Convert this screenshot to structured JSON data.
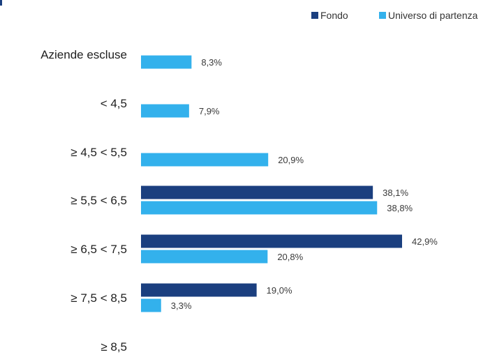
{
  "colors": {
    "fondo": "#1b3f7f",
    "universo": "#33b1ec",
    "category_text": "#1f1f1f",
    "value_text": "#3a3a3a",
    "legend_text": "#333333",
    "accent_mark": "#1b3f7f"
  },
  "chart_data": {
    "type": "bar",
    "orientation": "horizontal",
    "categories": [
      "Aziende escluse",
      "< 4,5",
      "≥ 4,5 < 5,5",
      "≥ 5,5 < 6,5",
      "≥ 6,5 < 7,5",
      "≥ 7,5 < 8,5",
      "≥ 8,5"
    ],
    "series": [
      {
        "name": "Fondo",
        "color": "#1b3f7f",
        "values": [
          null,
          null,
          null,
          38.1,
          42.9,
          19.0,
          null
        ],
        "labels": [
          "",
          "",
          "",
          "38,1%",
          "42,9%",
          "19,0%",
          ""
        ]
      },
      {
        "name": "Universo di partenza",
        "color": "#33b1ec",
        "values": [
          8.3,
          7.9,
          20.9,
          38.8,
          20.8,
          3.3,
          null
        ],
        "labels": [
          "8,3%",
          "7,9%",
          "20,9%",
          "38,8%",
          "20,8%",
          "3,3%",
          ""
        ]
      }
    ],
    "xlim": [
      0,
      50
    ],
    "legend_position": "top-right",
    "grid": false
  }
}
